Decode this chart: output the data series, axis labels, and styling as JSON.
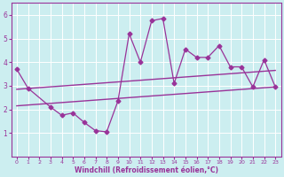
{
  "x_values": [
    0,
    1,
    2,
    3,
    4,
    5,
    6,
    7,
    8,
    9,
    10,
    11,
    12,
    13,
    14,
    15,
    16,
    17,
    18,
    19,
    20,
    21,
    22,
    23
  ],
  "main_line": [
    3.7,
    2.9,
    2.1,
    1.75,
    1.85,
    1.45,
    1.1,
    1.05,
    2.35,
    5.2,
    4.0,
    5.75,
    5.85,
    3.1,
    4.55,
    4.2,
    4.2,
    4.7,
    3.8,
    3.8,
    2.95,
    4.1,
    2.95
  ],
  "upper_trend_start": 2.85,
  "upper_trend_end": 3.65,
  "lower_trend_start": 2.15,
  "lower_trend_end": 2.95,
  "x_start": 0,
  "x_end": 23,
  "main_line_x": [
    0,
    1,
    3,
    4,
    5,
    6,
    7,
    8,
    9,
    10,
    11,
    12,
    13,
    14,
    15,
    16,
    17,
    18,
    19,
    20,
    21,
    22,
    23
  ],
  "line_color": "#993399",
  "bg_color": "#cceef0",
  "grid_color": "#ffffff",
  "xlabel": "Windchill (Refroidissement éolien,°C)",
  "xlim": [
    -0.5,
    23.5
  ],
  "ylim": [
    0,
    6.5
  ],
  "yticks": [
    1,
    2,
    3,
    4,
    5,
    6
  ],
  "xticks": [
    0,
    1,
    2,
    3,
    4,
    5,
    6,
    7,
    8,
    9,
    10,
    11,
    12,
    13,
    14,
    15,
    16,
    17,
    18,
    19,
    20,
    21,
    22,
    23
  ]
}
